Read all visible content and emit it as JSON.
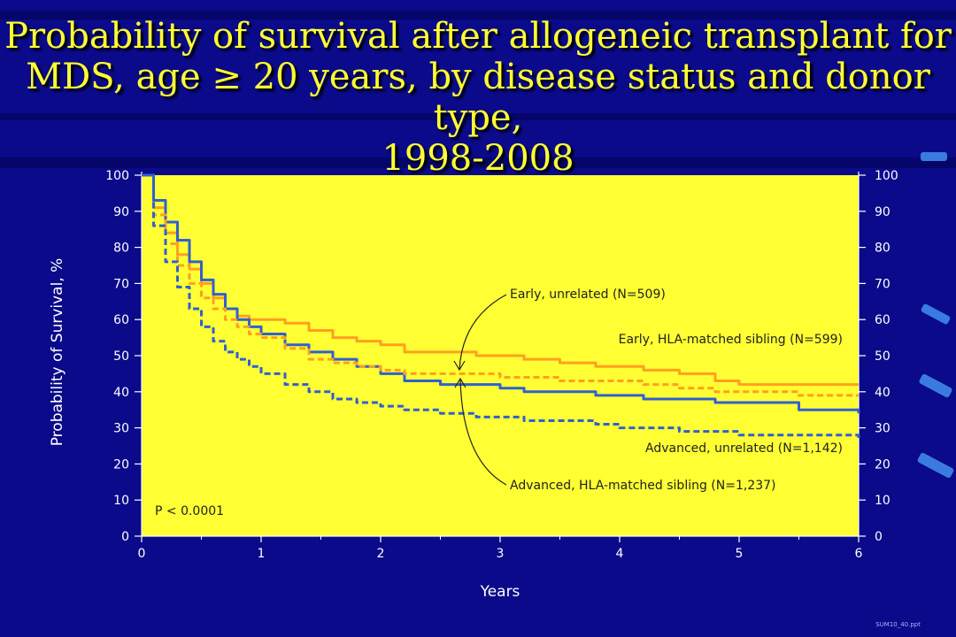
{
  "slide": {
    "title_line1": "Probability of survival after allogeneic transplant for",
    "title_line2": "MDS, age ≥ 20 years, by disease status and donor type,",
    "title_line3": "1998-2008",
    "footnote": "SUM10_40.ppt"
  },
  "colors": {
    "background": "#0a0a8a",
    "plot_bg": "#ffff33",
    "early_unrelated": "#3060d0",
    "early_sibling": "#ffa020",
    "advanced_unrelated": "#ffa020",
    "advanced_sibling": "#3060d0"
  },
  "chart_data": {
    "type": "line",
    "title": "Probability of survival after allogeneic transplant for MDS, age ≥ 20 years, by disease status and donor type, 1998-2008",
    "xlabel": "Years",
    "ylabel": "Probability of Survival, %",
    "xlim": [
      0,
      6
    ],
    "ylim": [
      0,
      100
    ],
    "x_ticks": [
      0,
      1,
      2,
      3,
      4,
      5,
      6
    ],
    "y_ticks": [
      0,
      10,
      20,
      30,
      40,
      50,
      60,
      70,
      80,
      90,
      100
    ],
    "x_tick_labels": [
      "0",
      "1",
      "2",
      "3",
      "4",
      "5",
      "6"
    ],
    "y_tick_labels": [
      "0",
      "10",
      "20",
      "30",
      "40",
      "50",
      "60",
      "70",
      "80",
      "90",
      "100"
    ],
    "annotation": "P < 0.0001",
    "series": [
      {
        "name": "Early, HLA-matched sibling (N=599)",
        "color": "#ffa020",
        "dash": false,
        "x": [
          0,
          0.1,
          0.2,
          0.3,
          0.4,
          0.5,
          0.6,
          0.7,
          0.8,
          0.9,
          1.0,
          1.2,
          1.4,
          1.6,
          1.8,
          2.0,
          2.2,
          2.5,
          2.8,
          3.0,
          3.2,
          3.5,
          3.8,
          4.0,
          4.2,
          4.5,
          4.8,
          5.0,
          5.5,
          6.0
        ],
        "y": [
          100,
          91,
          84,
          78,
          74,
          70,
          66,
          63,
          61,
          60,
          60,
          59,
          57,
          55,
          54,
          53,
          51,
          51,
          50,
          50,
          49,
          48,
          47,
          47,
          46,
          45,
          43,
          42,
          42,
          42
        ]
      },
      {
        "name": "Early, unrelated (N=509)",
        "color": "#3060d0",
        "dash": false,
        "x": [
          0,
          0.1,
          0.2,
          0.3,
          0.4,
          0.5,
          0.6,
          0.7,
          0.8,
          0.9,
          1.0,
          1.2,
          1.4,
          1.6,
          1.8,
          2.0,
          2.2,
          2.5,
          2.8,
          3.0,
          3.2,
          3.5,
          3.8,
          4.0,
          4.2,
          4.5,
          4.8,
          5.0,
          5.5,
          6.0
        ],
        "y": [
          100,
          93,
          87,
          82,
          76,
          71,
          67,
          63,
          60,
          58,
          56,
          53,
          51,
          49,
          47,
          45,
          43,
          42,
          42,
          41,
          40,
          40,
          39,
          39,
          38,
          38,
          37,
          37,
          35,
          34
        ]
      },
      {
        "name": "Advanced, unrelated (N=1,142)",
        "color": "#ffa020",
        "dash": true,
        "x": [
          0,
          0.1,
          0.2,
          0.3,
          0.4,
          0.5,
          0.6,
          0.7,
          0.8,
          0.9,
          1.0,
          1.2,
          1.4,
          1.6,
          1.8,
          2.0,
          2.2,
          2.5,
          2.8,
          3.0,
          3.2,
          3.5,
          3.8,
          4.0,
          4.2,
          4.5,
          4.8,
          5.0,
          5.5,
          6.0
        ],
        "y": [
          100,
          89,
          81,
          75,
          70,
          66,
          63,
          60,
          58,
          56,
          55,
          52,
          49,
          48,
          47,
          46,
          45,
          45,
          45,
          44,
          44,
          43,
          43,
          43,
          42,
          41,
          40,
          40,
          39,
          39
        ]
      },
      {
        "name": "Advanced, HLA-matched sibling (N=1,237)",
        "color": "#3060d0",
        "dash": true,
        "x": [
          0,
          0.1,
          0.2,
          0.3,
          0.4,
          0.5,
          0.6,
          0.7,
          0.8,
          0.9,
          1.0,
          1.2,
          1.4,
          1.6,
          1.8,
          2.0,
          2.2,
          2.5,
          2.8,
          3.0,
          3.2,
          3.5,
          3.8,
          4.0,
          4.2,
          4.5,
          4.8,
          5.0,
          5.5,
          6.0
        ],
        "y": [
          100,
          86,
          76,
          69,
          63,
          58,
          54,
          51,
          49,
          47,
          45,
          42,
          40,
          38,
          37,
          36,
          35,
          34,
          33,
          33,
          32,
          32,
          31,
          30,
          30,
          29,
          29,
          28,
          28,
          27
        ]
      }
    ],
    "labels": {
      "early_unrelated": "Early, unrelated (N=509)",
      "early_sibling": "Early, HLA-matched sibling (N=599)",
      "advanced_unrelated": "Advanced, unrelated (N=1,142)",
      "advanced_sibling": "Advanced, HLA-matched sibling (N=1,237)"
    }
  }
}
